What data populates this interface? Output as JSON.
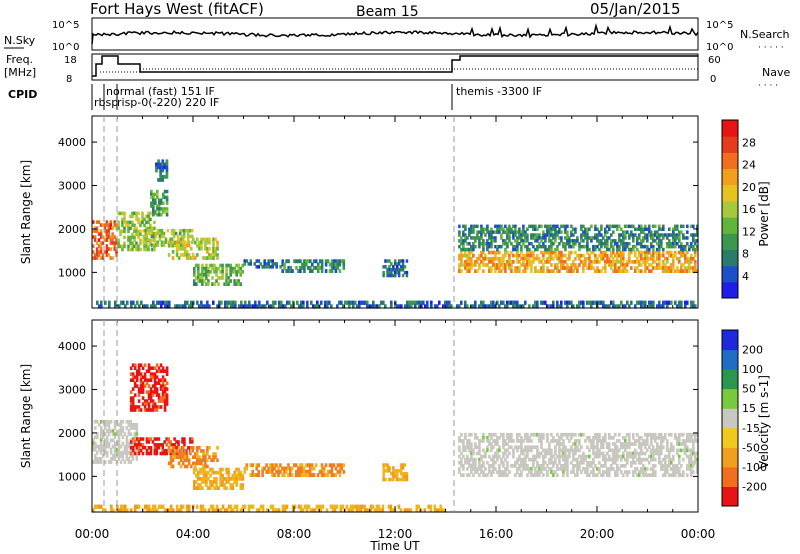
{
  "header": {
    "title": "Fort Hays West (fitACF)",
    "beam": "Beam 15",
    "date": "05/Jan/2015"
  },
  "top_panels": {
    "nsky_label": "N.Sky",
    "nsky_tick_top": "10^5",
    "nsky_tick_bottom": "10^0",
    "nsearch_label": "N.Search",
    "nsearch_tick_top": "10^5",
    "nsearch_tick_bottom": "10^0",
    "freq_label": "Freq.",
    "freq_unit": "[MHz]",
    "freq_tick_top": "18",
    "freq_tick_bottom": "8",
    "nave_label": "Nave",
    "nave_tick_top": "60",
    "nave_tick_bottom": "0",
    "cpid_label": "CPID",
    "cpid_segments": [
      {
        "label": "rbsprisp-0(-220) 220 IF",
        "start": 0.5,
        "end": 1.0
      },
      {
        "label": "normal (fast) 151 IF",
        "start": 1.0,
        "end": 14.5
      },
      {
        "label": "themis -3300 IF",
        "start": 14.5,
        "end": 24.0
      }
    ],
    "cpid_overlap_label": "rbsp",
    "cpid_overlap_label2": "risp-0(-220) 220 IF"
  },
  "time_axis": {
    "label": "Time UT",
    "ticks": [
      "00:00",
      "04:00",
      "08:00",
      "12:00",
      "16:00",
      "20:00",
      "00:00"
    ]
  },
  "chart_data": [
    {
      "type": "heatmap",
      "name": "power",
      "ylabel": "Slant Range [km]",
      "xlabel": "Time UT",
      "xlim": [
        0,
        24
      ],
      "ylim": [
        180,
        4600
      ],
      "yticks": [
        "1000",
        "2000",
        "3000",
        "4000"
      ],
      "colorbar_label": "Power [dB]",
      "colorbar_ticks": [
        "4",
        "8",
        "12",
        "16",
        "20",
        "24",
        "28"
      ],
      "colorbar_colors": [
        "#1e1ee6",
        "#1e4fc8",
        "#2a7a6e",
        "#3c9650",
        "#62b43c",
        "#a8c83c",
        "#e6c31e",
        "#f0a01e",
        "#f06e1e",
        "#e63c1e",
        "#e61414"
      ],
      "colorbar_range": [
        0,
        30
      ],
      "features": [
        {
          "x0": 0.0,
          "x1": 1.0,
          "y0": 1300,
          "y1": 2200,
          "v": 24
        },
        {
          "x0": 1.0,
          "x1": 2.5,
          "y0": 1500,
          "y1": 2400,
          "v": 14
        },
        {
          "x0": 2.3,
          "x1": 3.0,
          "y0": 2300,
          "y1": 2900,
          "v": 10
        },
        {
          "x0": 2.5,
          "x1": 3.0,
          "y0": 3100,
          "y1": 3600,
          "v": 6
        },
        {
          "x0": 2.0,
          "x1": 4.0,
          "y0": 1600,
          "y1": 2000,
          "v": 14
        },
        {
          "x0": 3.0,
          "x1": 5.0,
          "y0": 1300,
          "y1": 1800,
          "v": 16
        },
        {
          "x0": 4.0,
          "x1": 6.0,
          "y0": 700,
          "y1": 1200,
          "v": 12
        },
        {
          "x0": 6.0,
          "x1": 7.5,
          "y0": 1100,
          "y1": 1300,
          "v": 6
        },
        {
          "x0": 7.5,
          "x1": 10.0,
          "y0": 1000,
          "y1": 1300,
          "v": 8
        },
        {
          "x0": 11.5,
          "x1": 12.5,
          "y0": 900,
          "y1": 1300,
          "v": 6
        },
        {
          "x0": 14.5,
          "x1": 24.0,
          "y0": 1000,
          "y1": 1500,
          "v": 20
        },
        {
          "x0": 14.5,
          "x1": 24.0,
          "y0": 1500,
          "y1": 2100,
          "v": 8
        },
        {
          "x0": 0.0,
          "x1": 24.0,
          "y0": 180,
          "y1": 350,
          "v": 6
        }
      ]
    },
    {
      "type": "heatmap",
      "name": "velocity",
      "ylabel": "Slant Range [km]",
      "xlabel": "Time UT",
      "xlim": [
        0,
        24
      ],
      "ylim": [
        180,
        4600
      ],
      "yticks": [
        "1000",
        "2000",
        "3000",
        "4000"
      ],
      "colorbar_label": "Velocity [m s-1]",
      "colorbar_ticks": [
        "200",
        "100",
        "50",
        "15",
        "-15",
        "-50",
        "-100",
        "-200"
      ],
      "colorbar_colors": [
        "#1e28dc",
        "#1e6ec8",
        "#2a9650",
        "#7ac83c",
        "#c8c8c0",
        "#f0c81e",
        "#f0a01e",
        "#f06e1e",
        "#e61414"
      ],
      "features": [
        {
          "x0": 0.0,
          "x1": 1.8,
          "y0": 1300,
          "y1": 2300,
          "v": "gray"
        },
        {
          "x0": 1.5,
          "x1": 3.0,
          "y0": 2500,
          "y1": 3600,
          "v": "red"
        },
        {
          "x0": 1.5,
          "x1": 4.0,
          "y0": 1500,
          "y1": 1900,
          "v": "red"
        },
        {
          "x0": 3.0,
          "x1": 5.0,
          "y0": 1200,
          "y1": 1700,
          "v": "orange"
        },
        {
          "x0": 4.0,
          "x1": 6.0,
          "y0": 700,
          "y1": 1200,
          "v": "yellow"
        },
        {
          "x0": 6.0,
          "x1": 10.0,
          "y0": 1000,
          "y1": 1300,
          "v": "orange"
        },
        {
          "x0": 11.5,
          "x1": 12.5,
          "y0": 900,
          "y1": 1300,
          "v": "yellow"
        },
        {
          "x0": 14.5,
          "x1": 24.0,
          "y0": 1000,
          "y1": 2000,
          "v": "gray"
        },
        {
          "x0": 0.0,
          "x1": 14.0,
          "y0": 180,
          "y1": 350,
          "v": "yellow"
        }
      ]
    }
  ]
}
